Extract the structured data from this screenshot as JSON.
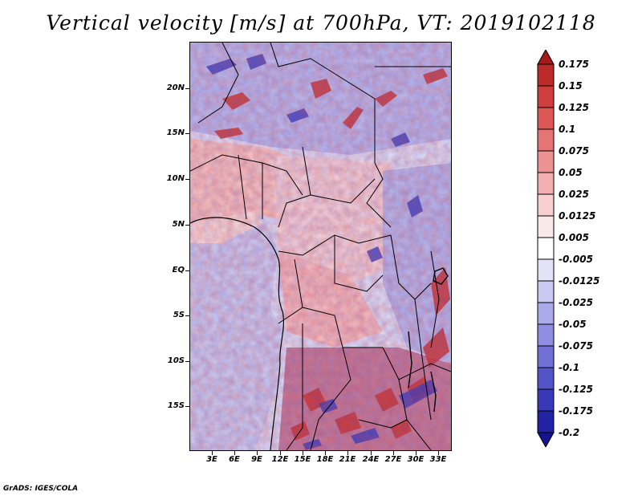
{
  "title": "Vertical velocity [m/s] at 700hPa, VT: 2019102118",
  "footer": "GrADS: IGES/COLA",
  "map": {
    "lat_labels": [
      "20N",
      "15N",
      "10N",
      "5N",
      "EQ",
      "5S",
      "10S",
      "15S"
    ],
    "lon_labels": [
      "3E",
      "6E",
      "9E",
      "12E",
      "15E",
      "18E",
      "21E",
      "24E",
      "27E",
      "30E",
      "33E"
    ]
  },
  "colorbar": {
    "levels": [
      "0.175",
      "0.15",
      "0.125",
      "0.1",
      "0.075",
      "0.05",
      "0.025",
      "0.0125",
      "0.005",
      "-0.005",
      "-0.0125",
      "-0.025",
      "-0.05",
      "-0.075",
      "-0.1",
      "-0.125",
      "-0.175",
      "-0.2"
    ],
    "colors": [
      "#a51a1a",
      "#bd2a2a",
      "#cf3e3e",
      "#dd5757",
      "#e57474",
      "#ec9292",
      "#f3b0b0",
      "#f8cfcf",
      "#fbe8e8",
      "#ffffff",
      "#e3e3f8",
      "#c9c9f1",
      "#ababea",
      "#8e8ee2",
      "#7070d6",
      "#5454c9",
      "#3838b8",
      "#2222a5",
      "#14148f"
    ]
  }
}
